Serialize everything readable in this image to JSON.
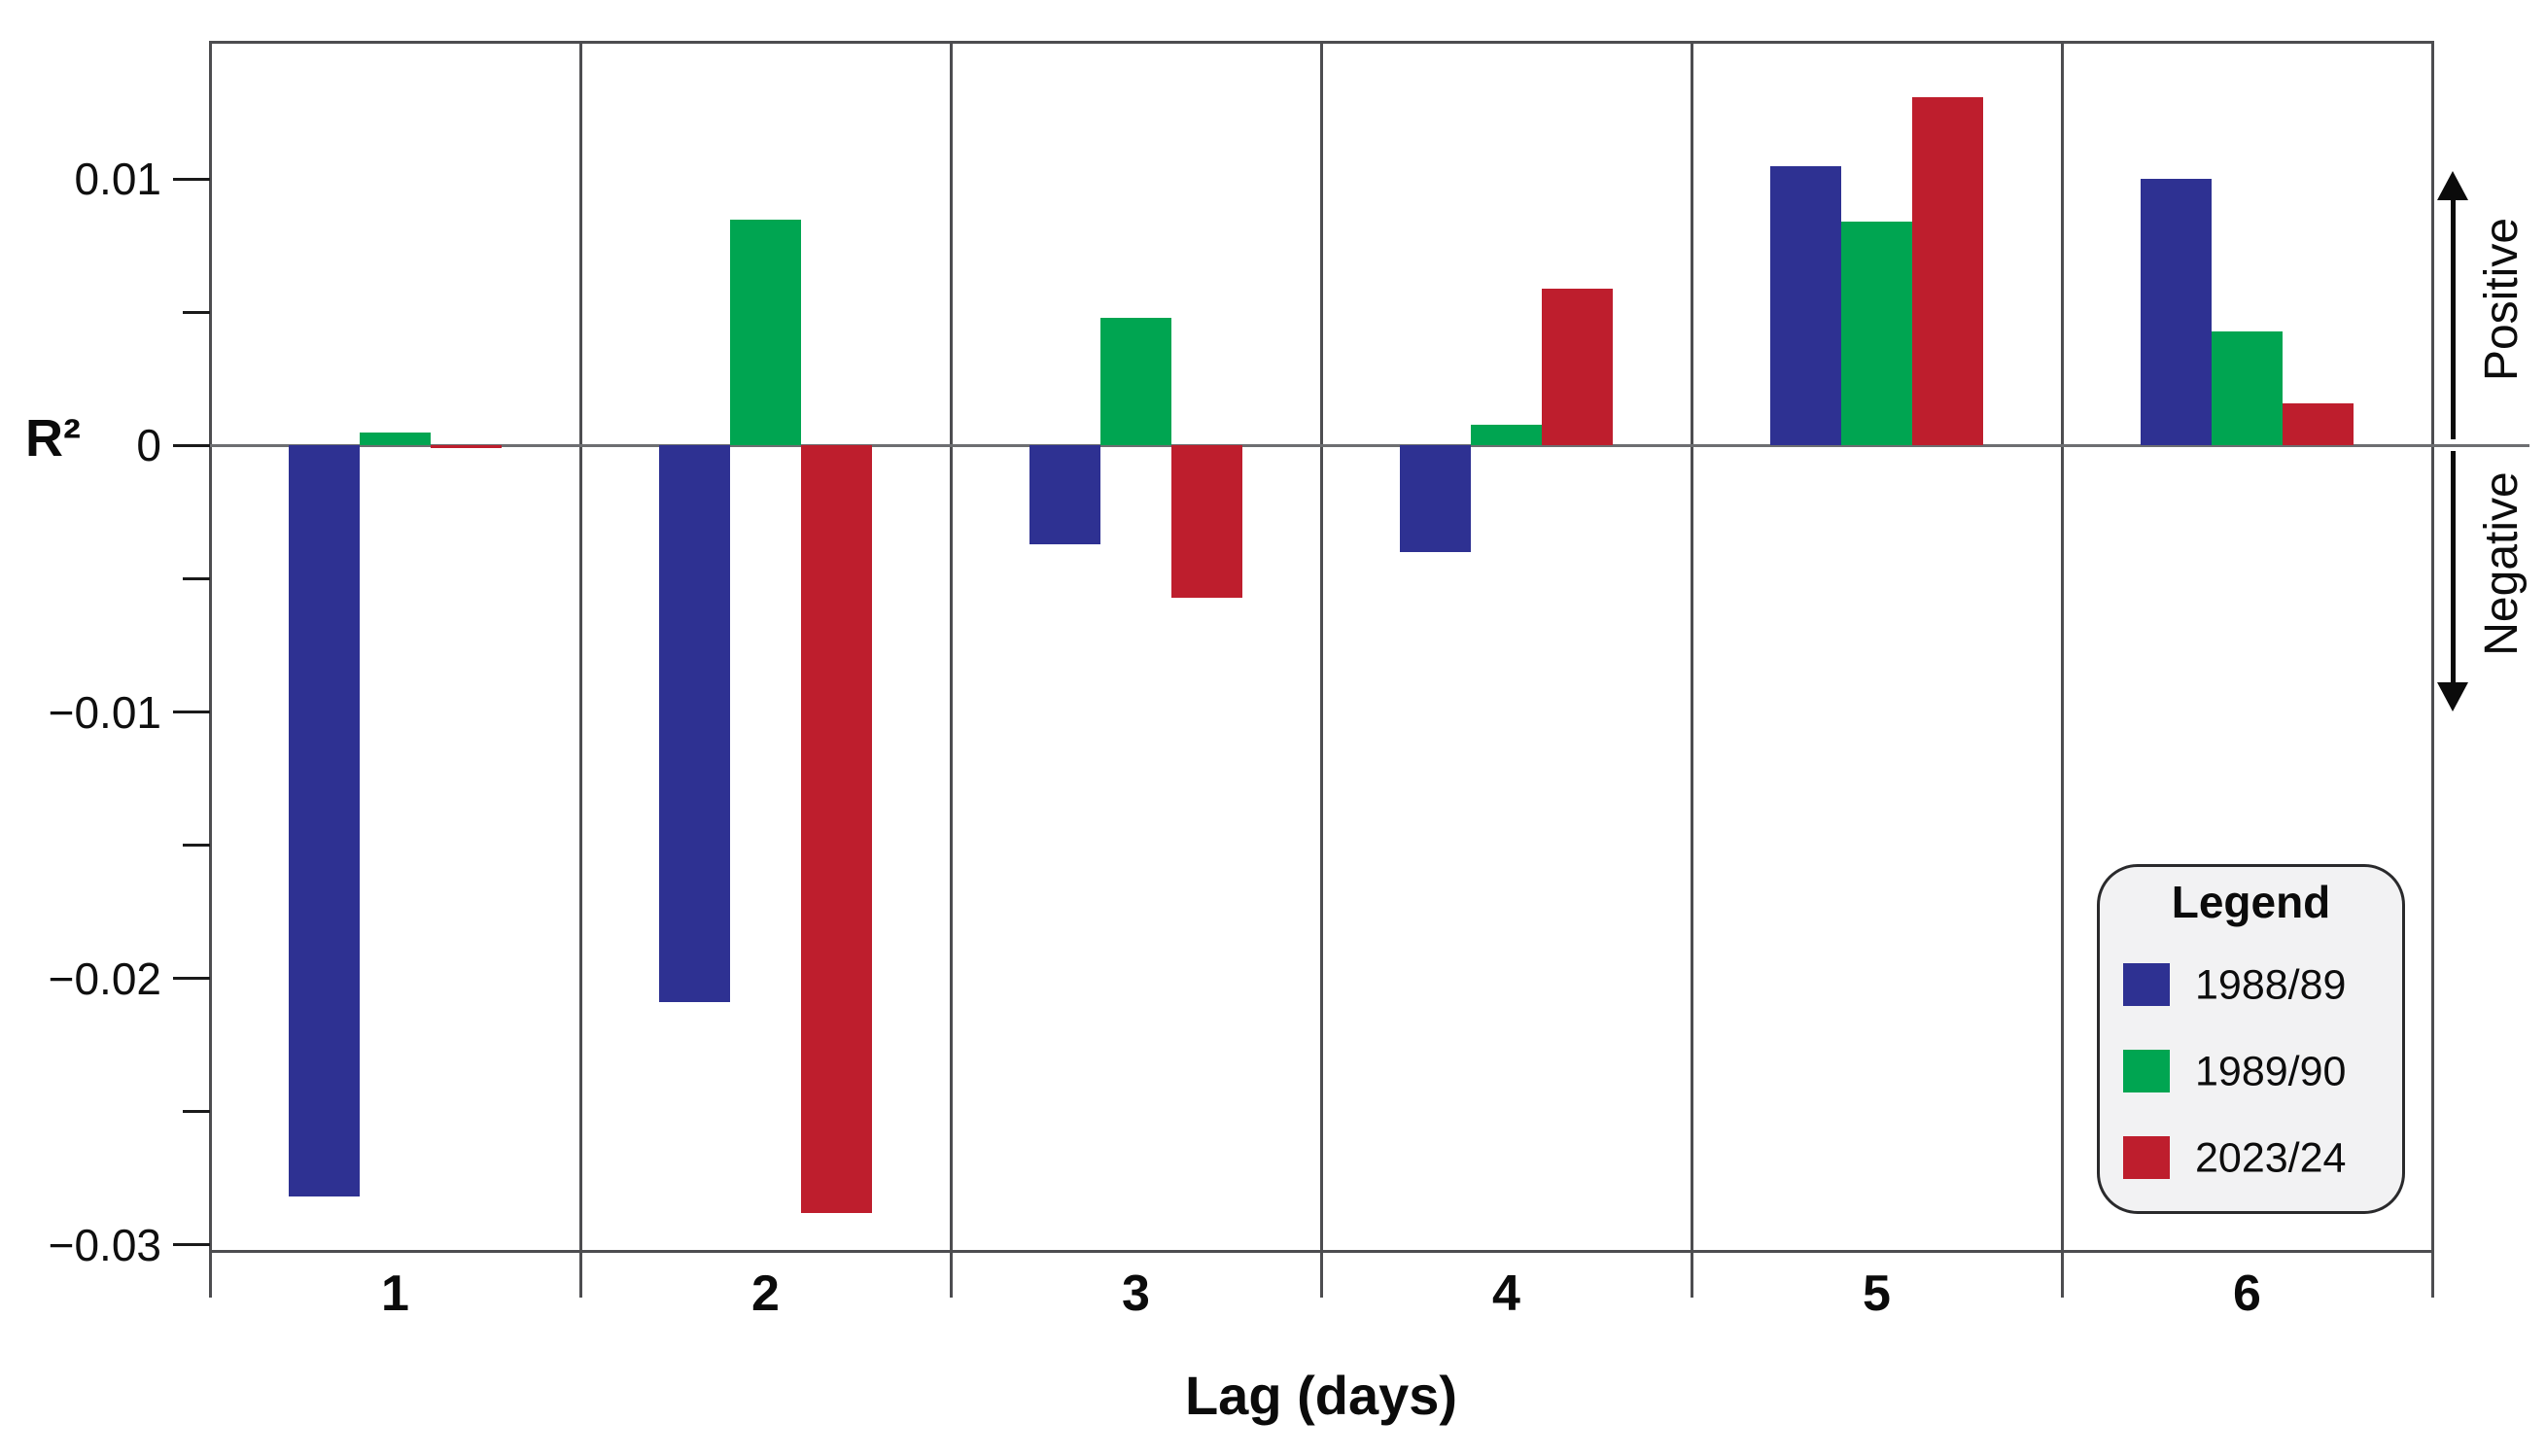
{
  "chart_data": {
    "type": "bar",
    "title": "",
    "xlabel": "Lag (days)",
    "ylabel": "R²",
    "categories": [
      "1",
      "2",
      "3",
      "4",
      "5",
      "6"
    ],
    "series": [
      {
        "name": "1988/89",
        "color": "#2E3192",
        "values": [
          -0.0282,
          -0.0209,
          -0.0037,
          -0.004,
          0.0105,
          0.01
        ]
      },
      {
        "name": "1989/90",
        "color": "#00A551",
        "values": [
          0.0005,
          0.0085,
          0.0048,
          0.0008,
          0.0084,
          0.0043
        ]
      },
      {
        "name": "2023/24",
        "color": "#BE1E2D",
        "values": [
          -0.0001,
          -0.0288,
          -0.0057,
          0.0059,
          0.0131,
          0.0016
        ]
      }
    ],
    "yticks": [
      {
        "value": 0.01,
        "label": "0.01"
      },
      {
        "value": 0.005,
        "label": ""
      },
      {
        "value": 0,
        "label": "0"
      },
      {
        "value": -0.005,
        "label": ""
      },
      {
        "value": -0.01,
        "label": "−0.01"
      },
      {
        "value": -0.015,
        "label": ""
      },
      {
        "value": -0.02,
        "label": "−0.02"
      },
      {
        "value": -0.025,
        "label": ""
      },
      {
        "value": -0.03,
        "label": "−0.03"
      }
    ],
    "ylim": [
      -0.0302,
      0.0152
    ],
    "grid": false,
    "legend_position": "lower right",
    "annotations": {
      "positive_label": "Positive",
      "negative_label": "Negative"
    }
  },
  "legend": {
    "title": "Legend",
    "items": [
      {
        "label": "1988/89",
        "color": "#2E3192"
      },
      {
        "label": "1989/90",
        "color": "#00A551"
      },
      {
        "label": "2023/24",
        "color": "#BE1E2D"
      }
    ]
  }
}
